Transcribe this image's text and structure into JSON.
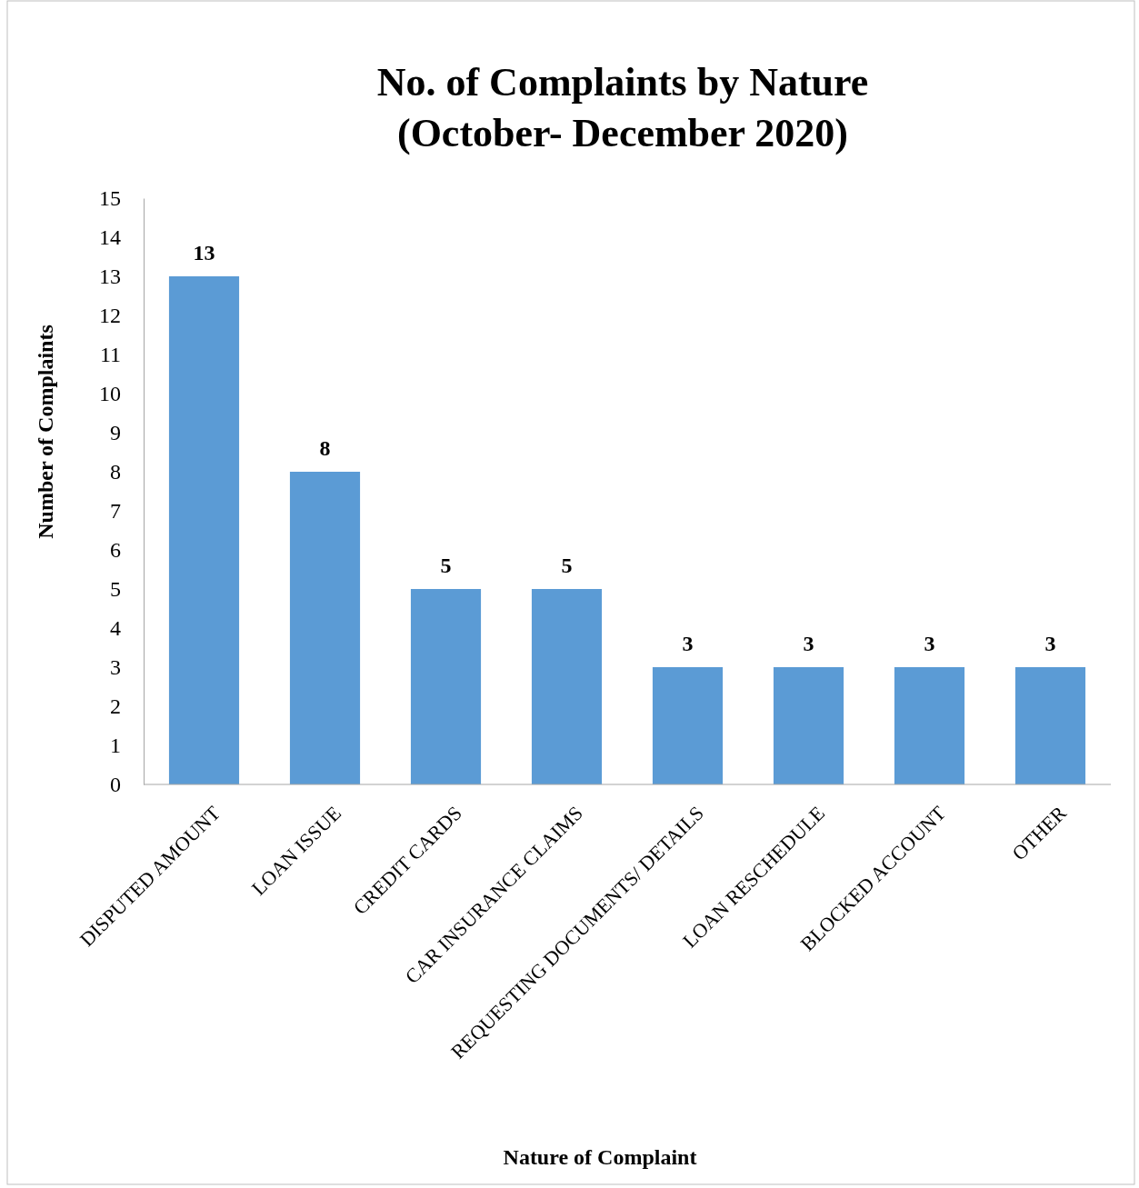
{
  "chart_data": {
    "type": "bar",
    "title": "No. of Complaints by Nature\n(October- December 2020)",
    "xlabel": "Nature of Complaint",
    "ylabel": "Number of Complaints",
    "categories": [
      "DISPUTED AMOUNT",
      "LOAN ISSUE",
      "CREDIT CARDS",
      "CAR INSURANCE CLAIMS",
      "REQUESTING DOCUMENTS/ DETAILS",
      "LOAN RESCHEDULE",
      "BLOCKED ACCOUNT",
      "OTHER"
    ],
    "values": [
      13,
      8,
      5,
      5,
      3,
      3,
      3,
      3
    ],
    "color": "#5b9bd5",
    "ylim": [
      0,
      15
    ],
    "yticks": [
      0,
      1,
      2,
      3,
      4,
      5,
      6,
      7,
      8,
      9,
      10,
      11,
      12,
      13,
      14,
      15
    ],
    "grid": false,
    "data_labels": true
  }
}
